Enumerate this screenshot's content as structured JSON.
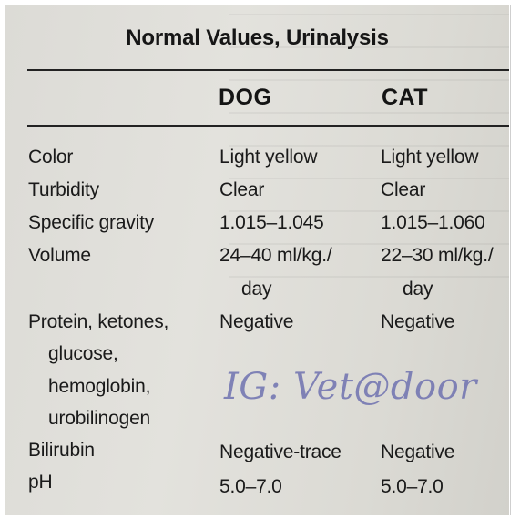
{
  "title": "Normal Values, Urinalysis",
  "headers": {
    "dog": "DOG",
    "cat": "CAT"
  },
  "rows": [
    {
      "param": [
        "Color"
      ],
      "dog": [
        "Light yellow"
      ],
      "cat": [
        "Light yellow"
      ]
    },
    {
      "param": [
        "Turbidity"
      ],
      "dog": [
        "Clear"
      ],
      "cat": [
        "Clear"
      ]
    },
    {
      "param": [
        "Specific gravity"
      ],
      "dog": [
        "1.015–1.045"
      ],
      "cat": [
        "1.015–1.060"
      ]
    },
    {
      "param": [
        "Volume"
      ],
      "dog": [
        "24–40 ml/kg./",
        "day"
      ],
      "cat": [
        "22–30 ml/kg./",
        "day"
      ]
    },
    {
      "param": [
        "Protein, ketones,",
        "glucose,",
        "hemoglobin,",
        "urobilinogen"
      ],
      "dog": [
        "Negative"
      ],
      "cat": [
        "Negative"
      ]
    },
    {
      "param": [
        "Bilirubin"
      ],
      "dog": [
        "Negative-trace"
      ],
      "cat": [
        "Negative"
      ]
    },
    {
      "param": [
        "pH"
      ],
      "dog": [
        "5.0–7.0"
      ],
      "cat": [
        "5.0–7.0"
      ]
    }
  ],
  "watermark": "IG: Vet@door"
}
